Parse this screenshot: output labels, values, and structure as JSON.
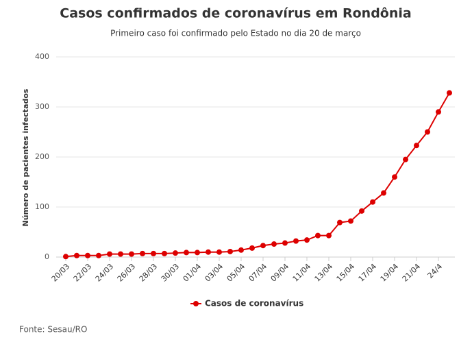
{
  "chart_data": {
    "type": "line",
    "title": "Casos confirmados de coronavírus em Rondônia",
    "subtitle": "Primeiro caso foi confirmado pelo Estado no dia 20 de março",
    "y_label": "Número de pacientes infectados",
    "source": "Fonte: Sesau/RO",
    "categories": [
      "20/03",
      null,
      "22/03",
      null,
      "24/03",
      null,
      "26/03",
      null,
      "28/03",
      null,
      "30/03",
      null,
      "01/04",
      null,
      "03/04",
      null,
      "05/04",
      null,
      "07/04",
      null,
      "09/04",
      null,
      "11/04",
      null,
      "13/04",
      null,
      "15/04",
      null,
      "17/04",
      null,
      "19/04",
      null,
      "21/04",
      null,
      "24/4",
      null
    ],
    "series": [
      {
        "name": "Casos de coronavírus",
        "color": "#dd0000",
        "values": [
          1,
          3,
          3,
          3,
          6,
          6,
          6,
          7,
          7,
          7,
          8,
          9,
          9,
          10,
          10,
          11,
          14,
          18,
          23,
          26,
          28,
          32,
          34,
          43,
          43,
          69,
          72,
          92,
          110,
          128,
          160,
          195,
          223,
          250,
          290,
          328
        ]
      }
    ],
    "ylim": [
      0,
      400
    ],
    "yticks": [
      0,
      100,
      200,
      300,
      400
    ],
    "grid": true,
    "legend": "bottom"
  }
}
